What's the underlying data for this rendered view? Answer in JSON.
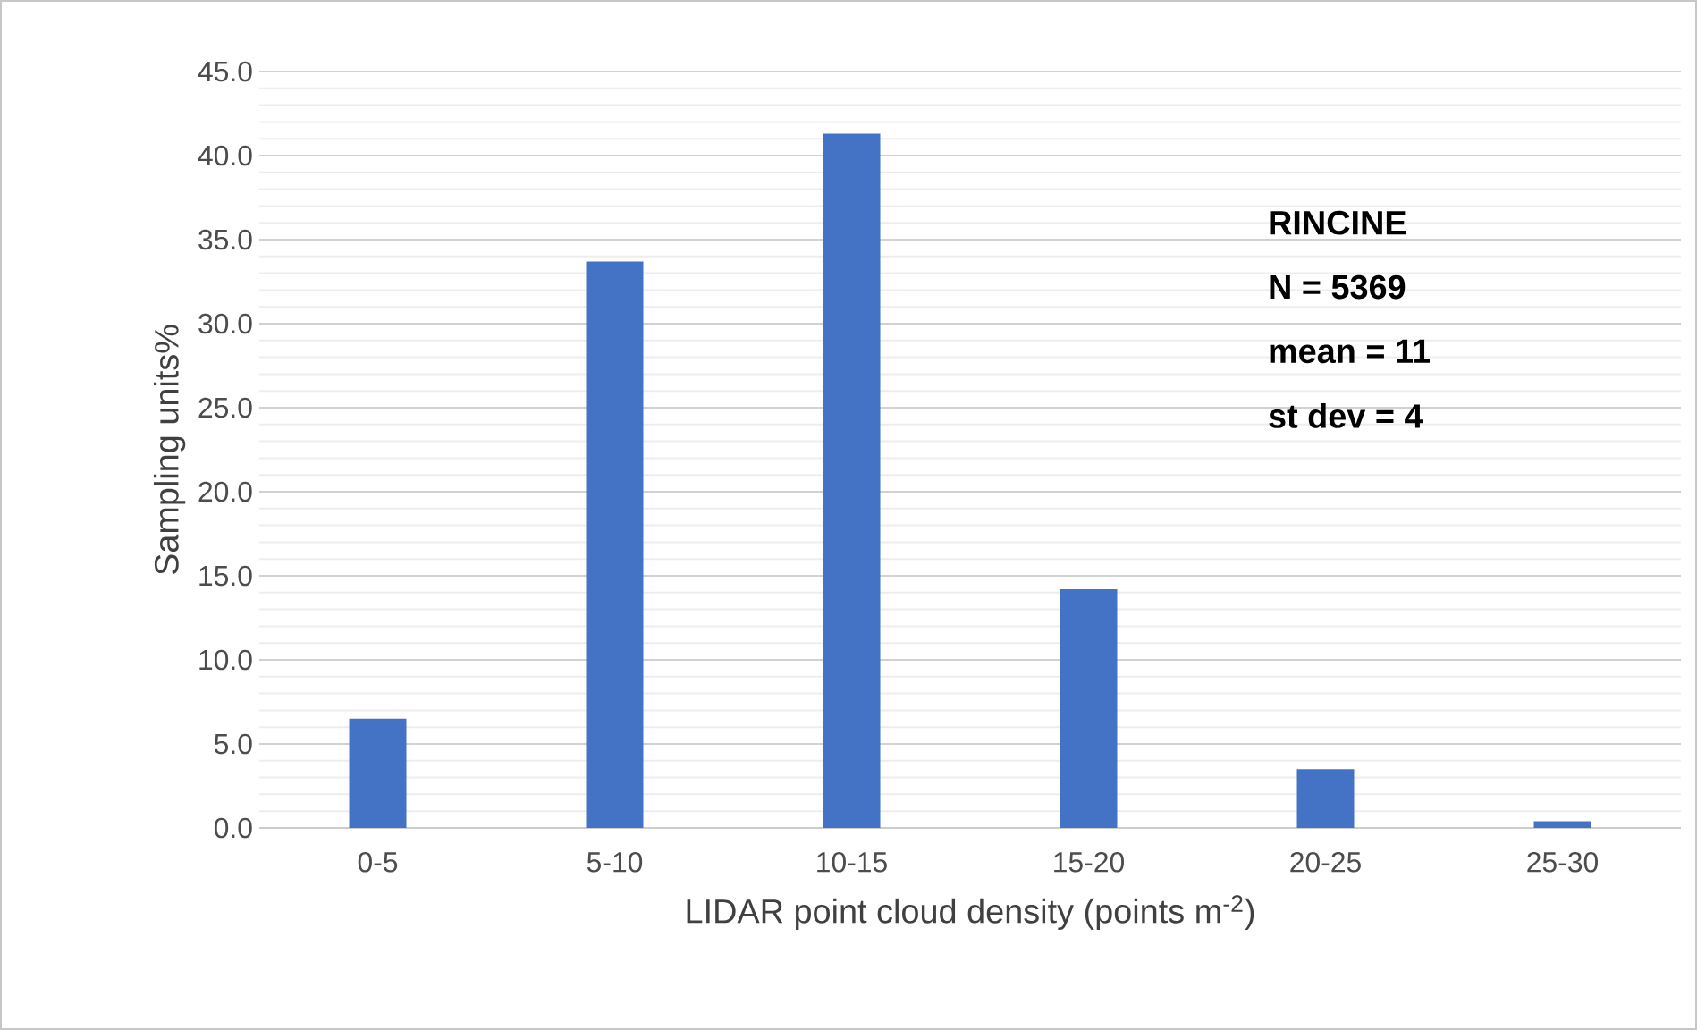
{
  "chart_data": {
    "type": "bar",
    "xlabel": "LIDAR point cloud density (points m$^{-2}$)",
    "ylabel": "Sampling units%",
    "categories": [
      "0-5",
      "5-10",
      "10-15",
      "15-20",
      "20-25",
      "25-30"
    ],
    "values": [
      6.5,
      33.7,
      41.3,
      14.2,
      3.5,
      0.4
    ],
    "color": "#4472c4",
    "ylim": [
      0,
      45
    ],
    "yticks": [
      {
        "value": 0,
        "label": "0.0"
      },
      {
        "value": 5,
        "label": "5.0"
      },
      {
        "value": 10,
        "label": "10.0"
      },
      {
        "value": 15,
        "label": "15.0"
      },
      {
        "value": 20,
        "label": "20.0"
      },
      {
        "value": 25,
        "label": "25.0"
      },
      {
        "value": 30,
        "label": "30.0"
      },
      {
        "value": 35,
        "label": "35.0"
      },
      {
        "value": 40,
        "label": "40.0"
      },
      {
        "value": 45,
        "label": "45.0"
      }
    ],
    "grid": "y",
    "annotations": [
      "RINCINE",
      "N = 5369",
      "mean = 11",
      "st dev = 4"
    ]
  }
}
